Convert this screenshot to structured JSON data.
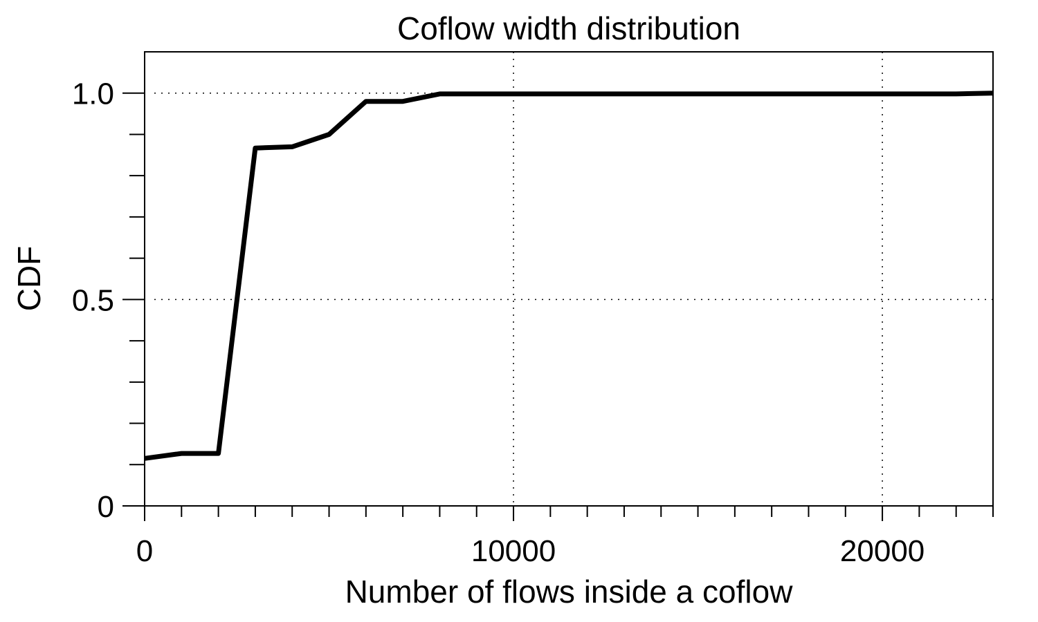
{
  "chart_data": {
    "type": "line",
    "title": "Coflow width distribution",
    "xlabel": "Number of flows inside a coflow",
    "ylabel": "CDF",
    "xlim": [
      0,
      23000
    ],
    "ylim": [
      0,
      1.1
    ],
    "x_ticks": [
      {
        "value": 0,
        "label": "0"
      },
      {
        "value": 10000,
        "label": "10000"
      },
      {
        "value": 20000,
        "label": "20000"
      }
    ],
    "y_ticks": [
      {
        "value": 0,
        "label": "0"
      },
      {
        "value": 0.5,
        "label": "0.5"
      },
      {
        "value": 1.0,
        "label": "1.0"
      }
    ],
    "x_minor_step": 1000,
    "y_minor_step": 0.1,
    "grid": true,
    "grid_x": [
      10000,
      20000
    ],
    "grid_y": [
      0.5,
      1.0
    ],
    "series": [
      {
        "color": "#000000",
        "x": [
          0,
          1000,
          2000,
          3000,
          4000,
          5000,
          6000,
          7000,
          8000,
          9000,
          10000,
          12000,
          14000,
          16000,
          18000,
          20000,
          22000,
          23000
        ],
        "y": [
          0.115,
          0.127,
          0.127,
          0.867,
          0.87,
          0.9,
          0.98,
          0.98,
          0.998,
          0.998,
          0.998,
          0.998,
          0.998,
          0.998,
          0.998,
          0.998,
          0.998,
          1.0
        ]
      }
    ]
  }
}
